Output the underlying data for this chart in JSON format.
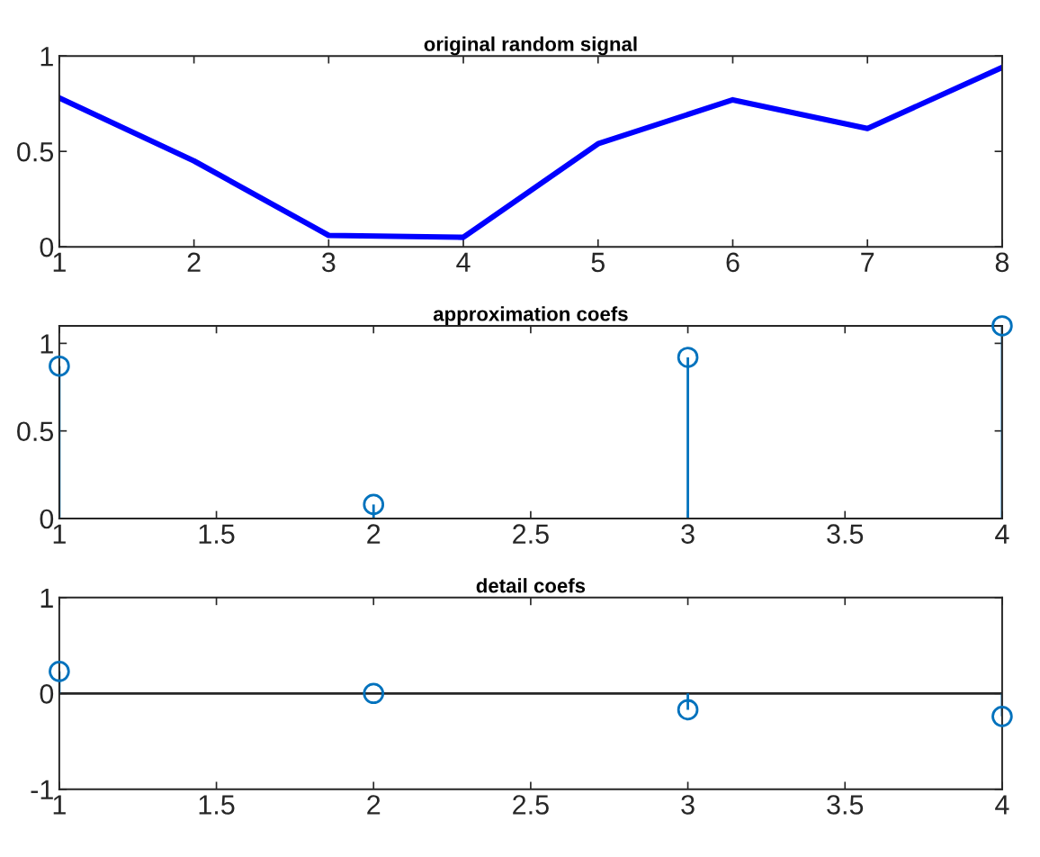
{
  "chart_data": [
    {
      "type": "line",
      "title": "original random signal",
      "x": [
        1,
        2,
        3,
        4,
        5,
        6,
        7,
        8
      ],
      "values": [
        0.78,
        0.45,
        0.06,
        0.05,
        0.54,
        0.77,
        0.62,
        0.94
      ],
      "color": "#0000ff",
      "xlim": [
        1,
        8
      ],
      "xticks": [
        1,
        2,
        3,
        4,
        5,
        6,
        7,
        8
      ],
      "ylim": [
        0,
        1
      ],
      "yticks": [
        0,
        0.5,
        1
      ]
    },
    {
      "type": "lollipop",
      "title": "approximation coefs",
      "x": [
        1,
        2,
        3,
        4
      ],
      "values": [
        0.87,
        0.08,
        0.92,
        1.1
      ],
      "color": "#0072bd",
      "marker": "circle",
      "xlim": [
        1,
        4
      ],
      "xticks": [
        1,
        1.5,
        2,
        2.5,
        3,
        3.5,
        4
      ],
      "ylim": [
        0,
        1.1
      ],
      "yticks": [
        0,
        0.5,
        1
      ]
    },
    {
      "type": "lollipop",
      "title": "detail coefs",
      "x": [
        1,
        2,
        3,
        4
      ],
      "values": [
        0.23,
        0.0,
        -0.17,
        -0.24
      ],
      "color": "#0072bd",
      "marker": "circle",
      "xlim": [
        1,
        4
      ],
      "xticks": [
        1,
        1.5,
        2,
        2.5,
        3,
        3.5,
        4
      ],
      "ylim": [
        -1,
        1
      ],
      "yticks": [
        -1,
        0,
        1
      ],
      "ref_lines": [
        {
          "axis": "y",
          "value": 0,
          "color": "#262626"
        }
      ]
    }
  ]
}
